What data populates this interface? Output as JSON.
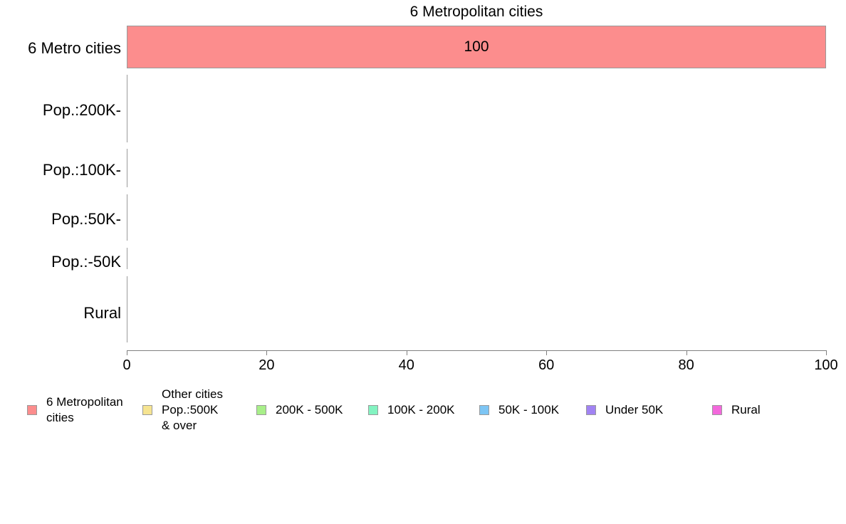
{
  "chart_data": {
    "type": "bar",
    "orientation": "horizontal",
    "title": "6 Metropolitan cities",
    "categories": [
      "6 Metro cities",
      "Pop.:200K-",
      "Pop.:100K-",
      "Pop.:50K-",
      "Pop.:-50K",
      "Rural"
    ],
    "series": [
      {
        "name": "6 Metropolitan cities",
        "color": "#fc8d8d",
        "values": [
          100,
          0,
          0,
          0,
          0,
          0
        ]
      },
      {
        "name": "Other cities Pop.:500K & over",
        "color": "#f6e491",
        "values": [
          0,
          0,
          0,
          0,
          0,
          0
        ]
      },
      {
        "name": "200K - 500K",
        "color": "#a8ef89",
        "values": [
          0,
          0,
          0,
          0,
          0,
          0
        ]
      },
      {
        "name": "100K - 200K",
        "color": "#83f3c1",
        "values": [
          0,
          0,
          0,
          0,
          0,
          0
        ]
      },
      {
        "name": "50K - 100K",
        "color": "#7dc5f4",
        "values": [
          0,
          0,
          0,
          0,
          0,
          0
        ]
      },
      {
        "name": "Under 50K",
        "color": "#a183f3",
        "values": [
          0,
          0,
          0,
          0,
          0,
          0
        ]
      },
      {
        "name": "Rural",
        "color": "#f368dc",
        "values": [
          0,
          0,
          0,
          0,
          0,
          0
        ]
      }
    ],
    "bar_value_label": "100",
    "xlim": [
      0,
      100
    ],
    "xticks": [
      0,
      20,
      40,
      60,
      80,
      100
    ],
    "grid": false,
    "legend_position": "bottom",
    "axis_color": "#808080",
    "bar_edge_color": "#999999"
  },
  "legend": {
    "entries": [
      {
        "lines": [
          "6 Metropolitan",
          "cities"
        ],
        "color": "#fc8d8d"
      },
      {
        "lines": [
          "Other cities",
          "Pop.:500K",
          "& over"
        ],
        "color": "#f6e491"
      },
      {
        "lines": [
          "200K - 500K"
        ],
        "color": "#a8ef89"
      },
      {
        "lines": [
          "100K - 200K"
        ],
        "color": "#83f3c1"
      },
      {
        "lines": [
          "50K - 100K"
        ],
        "color": "#7dc5f4"
      },
      {
        "lines": [
          "Under 50K"
        ],
        "color": "#a183f3"
      },
      {
        "lines": [
          "Rural"
        ],
        "color": "#f368dc"
      }
    ]
  }
}
